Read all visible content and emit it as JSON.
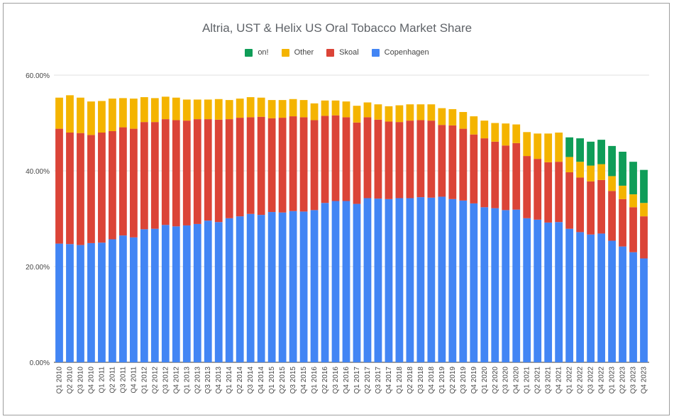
{
  "chart_data": {
    "type": "bar",
    "stacked": true,
    "title": "Altria, UST & Helix US Oral Tobacco Market Share",
    "xlabel": "",
    "ylabel": "",
    "ylim": [
      0,
      60
    ],
    "yticks": [
      "0.00%",
      "20.00%",
      "40.00%",
      "60.00%"
    ],
    "grid": true,
    "legend_position": "top",
    "legend_order": [
      "on!",
      "Other",
      "Skoal",
      "Copenhagen"
    ],
    "categories": [
      "Q1 2010",
      "Q2 2010",
      "Q3 2010",
      "Q4 2010",
      "Q1 2011",
      "Q2 2011",
      "Q3 2011",
      "Q4 2011",
      "Q1 2012",
      "Q2 2012",
      "Q3 2012",
      "Q4 2012",
      "Q1 2013",
      "Q2 2013",
      "Q3 2013",
      "Q4 2013",
      "Q1 2014",
      "Q2 2014",
      "Q3 2014",
      "Q4 2014",
      "Q1 2015",
      "Q2 2015",
      "Q3 2015",
      "Q4 2015",
      "Q1 2016",
      "Q2 2016",
      "Q3 2016",
      "Q4 2016",
      "Q1 2017",
      "Q2 2017",
      "Q3 2017",
      "Q4 2017",
      "Q1 2018",
      "Q2 2018",
      "Q3 2018",
      "Q4 2018",
      "Q1 2019",
      "Q2 2019",
      "Q3 2019",
      "Q4 2019",
      "Q1 2020",
      "Q2 2020",
      "Q3 2020",
      "Q4 2020",
      "Q1 2021",
      "Q2 2021",
      "Q3 2021",
      "Q4 2021",
      "Q1 2022",
      "Q2 2022",
      "Q3 2022",
      "Q4 2022",
      "Q1 2023",
      "Q2 2023",
      "Q3 2023",
      "Q4 2023"
    ],
    "series": [
      {
        "name": "Copenhagen",
        "color": "#4285f4",
        "values": [
          24.8,
          24.7,
          24.5,
          24.9,
          25.0,
          25.7,
          26.5,
          26.1,
          27.8,
          27.9,
          28.7,
          28.4,
          28.6,
          28.9,
          29.6,
          29.3,
          30.1,
          30.5,
          31.0,
          30.8,
          31.4,
          31.3,
          31.6,
          31.5,
          31.8,
          33.3,
          33.7,
          33.7,
          33.1,
          34.3,
          34.2,
          34.1,
          34.3,
          34.3,
          34.5,
          34.4,
          34.6,
          34.1,
          33.8,
          33.2,
          32.4,
          32.2,
          31.8,
          31.9,
          30.1,
          29.8,
          29.2,
          29.3,
          27.9,
          27.2,
          26.7,
          26.9,
          25.4,
          24.2,
          23.0,
          21.7
        ]
      },
      {
        "name": "Skoal",
        "color": "#db4437",
        "values": [
          24.0,
          23.3,
          23.4,
          22.6,
          23.0,
          22.6,
          22.6,
          22.7,
          22.4,
          22.3,
          22.1,
          22.2,
          21.9,
          21.9,
          21.2,
          21.4,
          20.7,
          20.6,
          20.2,
          20.5,
          19.6,
          19.8,
          19.8,
          19.7,
          18.8,
          18.2,
          17.9,
          17.5,
          17.0,
          16.9,
          16.5,
          16.2,
          15.9,
          16.2,
          16.1,
          16.1,
          15.0,
          15.4,
          15.0,
          14.4,
          14.4,
          13.9,
          13.5,
          13.9,
          13.0,
          12.7,
          12.6,
          12.6,
          11.8,
          11.4,
          11.1,
          11.2,
          10.4,
          9.9,
          9.4,
          8.8
        ]
      },
      {
        "name": "Other",
        "color": "#f4b400",
        "values": [
          6.5,
          7.8,
          7.4,
          7.0,
          6.6,
          6.8,
          6.1,
          6.3,
          5.2,
          5.0,
          4.7,
          4.7,
          4.4,
          4.1,
          4.1,
          4.3,
          4.0,
          4.0,
          4.2,
          4.0,
          3.8,
          3.7,
          3.6,
          3.6,
          3.5,
          3.2,
          3.1,
          3.3,
          3.5,
          3.1,
          3.2,
          3.2,
          3.5,
          3.4,
          3.3,
          3.4,
          3.5,
          3.4,
          3.5,
          3.8,
          3.7,
          3.9,
          4.6,
          3.9,
          5.0,
          5.3,
          6.0,
          6.1,
          3.2,
          3.3,
          3.3,
          3.3,
          3.1,
          2.8,
          2.7,
          2.8
        ]
      },
      {
        "name": "on!",
        "color": "#0f9d58",
        "values": [
          0,
          0,
          0,
          0,
          0,
          0,
          0,
          0,
          0,
          0,
          0,
          0,
          0,
          0,
          0,
          0,
          0,
          0,
          0,
          0,
          0,
          0,
          0,
          0,
          0,
          0,
          0,
          0,
          0,
          0,
          0,
          0,
          0,
          0,
          0,
          0,
          0,
          0,
          0,
          0,
          0,
          0,
          0,
          0,
          0,
          0,
          0,
          0,
          4.1,
          4.9,
          5.0,
          5.1,
          6.3,
          7.1,
          6.8,
          6.9
        ]
      }
    ]
  }
}
